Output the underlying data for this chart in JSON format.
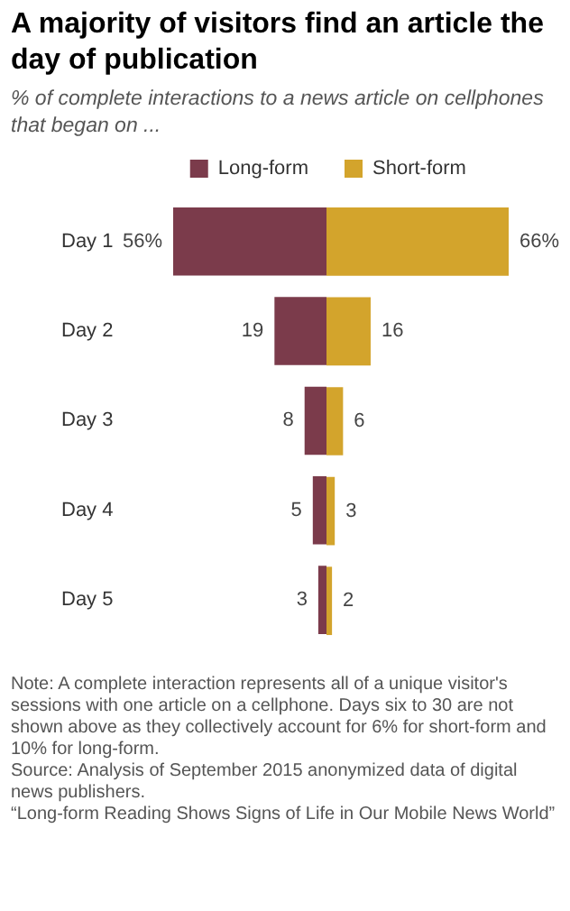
{
  "chart_data": [
    {
      "type": "bar",
      "orientation": "horizontal",
      "title": "A majority of visitors find an article the day of publication",
      "subtitle": "% of complete interactions to a news article on cellphones that began on ...",
      "categories": [
        "Day 1",
        "Day 2",
        "Day 3",
        "Day 4",
        "Day 5"
      ],
      "series": [
        {
          "name": "Long-form",
          "color": "#7b3b4b",
          "values": [
            56,
            19,
            8,
            5,
            3
          ],
          "value_labels": [
            "56%",
            "19",
            "8",
            "5",
            "3"
          ]
        }
      ],
      "xlim": [
        56,
        0
      ],
      "grid": false,
      "legend": "top right",
      "tick_labels": "y"
    },
    {
      "type": "bar",
      "orientation": "horizontal",
      "categories": [
        null,
        null,
        null,
        null,
        null
      ],
      "series": [
        {
          "name": "Short-form",
          "color": "#d3a42c",
          "values": [
            66,
            16,
            6,
            3,
            2
          ],
          "value_labels": [
            "66%",
            "16",
            "6",
            "3",
            "2"
          ]
        }
      ],
      "xlim": [
        0,
        66
      ],
      "grid": false,
      "legend": "top left",
      "tick_labels": false,
      "annotations": [
        "Note: A complete interaction represents all of a unique visitor's sessions with one article on a cellphone. Days six to 30 are not shown above as they collectively account for 6% for short-form and 10% for long-form.",
        "Source: Analysis of September 2015 anonymized data of digital news publishers.",
        "“Long-form Reading Shows Signs of Life in Our Mobile News World”"
      ]
    }
  ]
}
